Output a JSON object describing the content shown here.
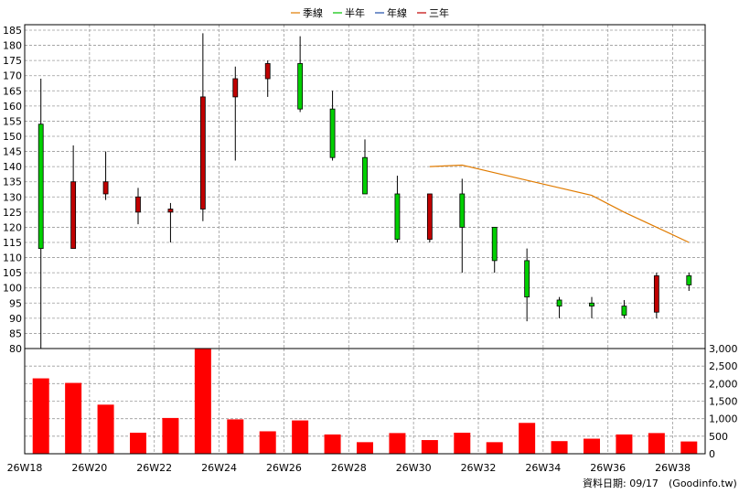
{
  "chart_data": {
    "type": "candlestick",
    "legend": [
      {
        "name": "季線",
        "color": "#e07b00"
      },
      {
        "name": "半年",
        "color": "#00c000"
      },
      {
        "name": "年線",
        "color": "#1f4ea8"
      },
      {
        "name": "三年",
        "color": "#c00000"
      }
    ],
    "x_tick_labels": [
      "26W18",
      "26W20",
      "26W22",
      "26W24",
      "26W26",
      "26W28",
      "26W30",
      "26W32",
      "26W34",
      "26W36",
      "26W38"
    ],
    "weeks": [
      "26W18",
      "26W19",
      "26W20",
      "26W21",
      "26W22",
      "26W23",
      "26W24",
      "26W25",
      "26W26",
      "26W27",
      "26W28",
      "26W29",
      "26W30",
      "26W31",
      "26W32",
      "26W33",
      "26W34",
      "26W35",
      "26W36",
      "26W37",
      "26W38"
    ],
    "candles": [
      {
        "open": 154,
        "close": 113,
        "high": 169,
        "low": 80
      },
      {
        "open": 113,
        "close": 135,
        "high": 147,
        "low": 113
      },
      {
        "open": 131,
        "close": 135,
        "high": 145,
        "low": 129
      },
      {
        "open": 125,
        "close": 130,
        "high": 133,
        "low": 121
      },
      {
        "open": 125,
        "close": 126,
        "high": 128,
        "low": 115
      },
      {
        "open": 126,
        "close": 163,
        "high": 184,
        "low": 122
      },
      {
        "open": 163,
        "close": 169,
        "high": 173,
        "low": 142
      },
      {
        "open": 169,
        "close": 174,
        "high": 175,
        "low": 163
      },
      {
        "open": 174,
        "close": 159,
        "high": 183,
        "low": 158
      },
      {
        "open": 159,
        "close": 143,
        "high": 165,
        "low": 142
      },
      {
        "open": 143,
        "close": 131,
        "high": 149,
        "low": 131
      },
      {
        "open": 131,
        "close": 116,
        "high": 137,
        "low": 115
      },
      {
        "open": 116,
        "close": 131,
        "high": 131,
        "low": 115
      },
      {
        "open": 131,
        "close": 120,
        "high": 136,
        "low": 105
      },
      {
        "open": 120,
        "close": 109,
        "high": 120,
        "low": 105
      },
      {
        "open": 109,
        "close": 97,
        "high": 113,
        "low": 89
      },
      {
        "open": 96,
        "close": 94,
        "high": 97,
        "low": 90
      },
      {
        "open": 95,
        "close": 94,
        "high": 97,
        "low": 90
      },
      {
        "open": 94,
        "close": 91,
        "high": 96,
        "low": 90
      },
      {
        "open": 92,
        "close": 104,
        "high": 105,
        "low": 90
      },
      {
        "open": 104,
        "close": 101,
        "high": 105,
        "low": 99
      }
    ],
    "ma_season": {
      "name": "季線",
      "start_index": 12,
      "values": [
        140,
        140.5,
        138,
        135.5,
        133,
        130.5,
        125,
        120,
        115
      ]
    },
    "volumes": [
      2150,
      2020,
      1400,
      600,
      1020,
      3000,
      980,
      640,
      950,
      550,
      330,
      590,
      390,
      600,
      330,
      880,
      360,
      430,
      550,
      590,
      350
    ],
    "price_axis": {
      "min": 80,
      "max": 185,
      "step": 5
    },
    "volume_axis": {
      "min": 0,
      "max": 3000,
      "step": 500
    },
    "colors": {
      "up": "#c00000",
      "down": "#00d000",
      "volume": "#ff0000",
      "grid": "#9a9a9a"
    },
    "footer": "資料日期: 09/17",
    "source": "(Goodinfo.tw)"
  }
}
